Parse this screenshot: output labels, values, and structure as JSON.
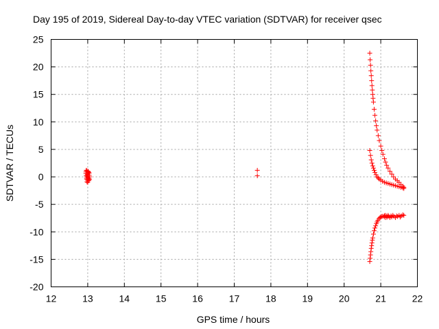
{
  "chart_data": {
    "type": "scatter",
    "title": "Day 195 of 2019, Sidereal Day-to-day VTEC variation (SDTVAR) for receiver qsec",
    "xlabel": "GPS time / hours",
    "ylabel": "SDTVAR / TECUs",
    "xlim": [
      12,
      22
    ],
    "ylim": [
      -20,
      25
    ],
    "xticks": [
      12,
      13,
      14,
      15,
      16,
      17,
      18,
      19,
      20,
      21,
      22
    ],
    "yticks": [
      -20,
      -15,
      -10,
      -5,
      0,
      5,
      10,
      15,
      20,
      25
    ],
    "grid": true,
    "marker": "+",
    "series": [
      {
        "name": "SDTVAR",
        "color": "#ff0000",
        "x": [
          12.95,
          12.96,
          12.97,
          12.98,
          12.99,
          13.0,
          13.01,
          13.02,
          13.03,
          13.04,
          13.05,
          12.96,
          12.98,
          13.0,
          13.02,
          13.04,
          12.97,
          12.99,
          13.01,
          13.03,
          12.95,
          13.0,
          13.05,
          12.98,
          13.02,
          17.63,
          17.63,
          20.7,
          20.71,
          20.72,
          20.73,
          20.74,
          20.75,
          20.76,
          20.77,
          20.78,
          20.79,
          20.8,
          20.82,
          20.84,
          20.86,
          20.88,
          20.9,
          20.93,
          20.96,
          21.0,
          21.03,
          21.06,
          21.1,
          21.13,
          21.16,
          21.2,
          21.25,
          21.3,
          21.35,
          21.4,
          21.45,
          21.5,
          21.55,
          21.6,
          21.63,
          20.7,
          20.72,
          20.74,
          20.76,
          20.78,
          20.8,
          20.82,
          20.84,
          20.87,
          20.9,
          20.93,
          20.96,
          21.0,
          21.05,
          21.1,
          21.15,
          21.2,
          21.25,
          21.3,
          21.35,
          21.4,
          21.45,
          21.5,
          21.55,
          21.6,
          21.63,
          20.7,
          20.71,
          20.72,
          20.73,
          20.74,
          20.75,
          20.76,
          20.77,
          20.78,
          20.8,
          20.82,
          20.84,
          20.86,
          20.88,
          20.9,
          20.92,
          20.95,
          20.98,
          21.0,
          21.03,
          21.06,
          21.1,
          21.1,
          21.12,
          21.14,
          21.16,
          21.18,
          21.2,
          21.22,
          21.25,
          21.28,
          21.3,
          21.33,
          21.36,
          21.4,
          21.43,
          21.46,
          21.5,
          21.53,
          21.56,
          21.6,
          21.63
        ],
        "y": [
          0.9,
          0.2,
          -0.4,
          1.1,
          -0.6,
          0.5,
          -0.1,
          0.8,
          -0.5,
          0.3,
          0.0,
          1.2,
          -0.9,
          0.6,
          -0.3,
          0.7,
          -0.2,
          0.4,
          1.0,
          -0.7,
          0.6,
          -1.0,
          -0.4,
          0.1,
          0.9,
          1.2,
          0.2,
          22.5,
          21.3,
          20.3,
          19.3,
          18.4,
          17.5,
          16.6,
          15.8,
          15.0,
          14.3,
          13.6,
          12.3,
          11.2,
          10.2,
          9.3,
          8.5,
          7.5,
          6.6,
          5.6,
          4.8,
          4.1,
          3.3,
          2.7,
          2.1,
          1.6,
          1.0,
          0.5,
          0.0,
          -0.4,
          -0.7,
          -1.0,
          -1.4,
          -1.7,
          -1.9,
          4.8,
          3.9,
          3.1,
          2.5,
          2.0,
          1.6,
          1.2,
          0.8,
          0.4,
          0.0,
          -0.2,
          -0.4,
          -0.6,
          -0.8,
          -1.0,
          -1.1,
          -1.2,
          -1.3,
          -1.4,
          -1.5,
          -1.6,
          -1.7,
          -1.8,
          -1.9,
          -2.0,
          -2.1,
          -15.4,
          -14.8,
          -14.2,
          -13.6,
          -13.0,
          -12.5,
          -12.0,
          -11.5,
          -11.1,
          -10.4,
          -9.8,
          -9.3,
          -8.9,
          -8.5,
          -8.2,
          -7.9,
          -7.6,
          -7.4,
          -7.3,
          -7.2,
          -7.15,
          -7.1,
          -7.3,
          -7.0,
          -7.4,
          -7.1,
          -7.3,
          -7.0,
          -7.2,
          -7.4,
          -7.1,
          -7.3,
          -7.0,
          -7.2,
          -7.4,
          -7.1,
          -7.2,
          -7.0,
          -7.3,
          -7.1,
          -6.9,
          -7.0
        ]
      }
    ]
  }
}
